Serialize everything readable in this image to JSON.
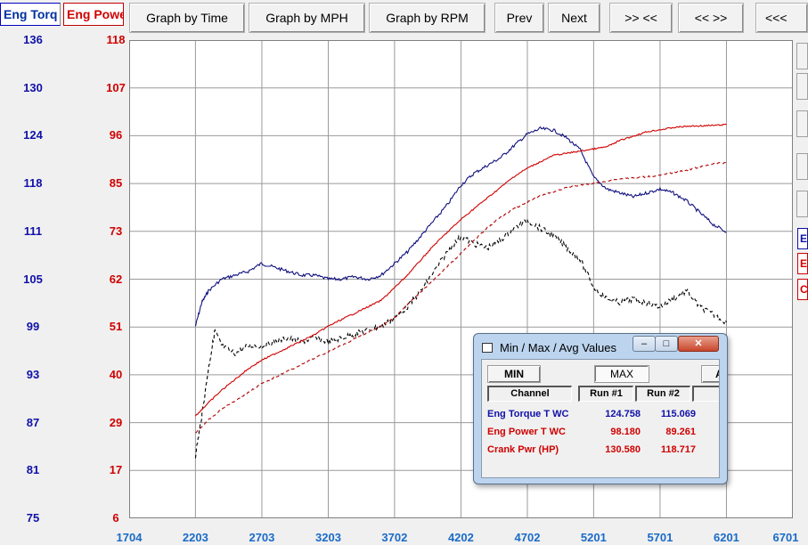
{
  "tabs": {
    "torque": "Eng Torq",
    "power": "Eng Powe"
  },
  "toolbar": {
    "graph_time": "Graph by Time",
    "graph_mph": "Graph by MPH",
    "graph_rpm": "Graph by RPM",
    "prev": "Prev",
    "next": "Next",
    "zoom_in": ">> <<",
    "zoom_out": "<< >>",
    "scroll_left": "<<<"
  },
  "side_chips": [
    "E",
    "E",
    "C"
  ],
  "colors": {
    "torque": "#1010a8",
    "power": "#d00000",
    "torque_run2": "#000000",
    "x_axis": "#1a6bc8"
  },
  "chart_data": {
    "type": "line",
    "xlabel": "",
    "ylabel_left": "",
    "ylabel_right": "",
    "x_ticks": [
      "1704",
      "2203",
      "2703",
      "3203",
      "3702",
      "4202",
      "4702",
      "5201",
      "5701",
      "6201",
      "6701"
    ],
    "xlim": [
      1704,
      6701
    ],
    "y_left_ticks": [
      "136",
      "130",
      "124",
      "118",
      "111",
      "105",
      "99",
      "93",
      "87",
      "81",
      "75"
    ],
    "y_left_range": [
      75,
      136
    ],
    "y_right_ticks": [
      "118",
      "107",
      "96",
      "85",
      "73",
      "62",
      "51",
      "40",
      "29",
      "17",
      "6"
    ],
    "y_right_range": [
      6,
      118
    ],
    "grid": true,
    "series": [
      {
        "axis": "left",
        "style": "solid",
        "color": "#101080",
        "x": [
          2203,
          2250,
          2300,
          2400,
          2500,
          2600,
          2700,
          2800,
          2900,
          3000,
          3100,
          3203,
          3300,
          3400,
          3500,
          3600,
          3702,
          3800,
          3900,
          4000,
          4100,
          4202,
          4300,
          4400,
          4500,
          4600,
          4702,
          4800,
          4900,
          5000,
          5100,
          5201,
          5300,
          5400,
          5500,
          5600,
          5701,
          5800,
          5900,
          6000,
          6100,
          6201
        ],
        "y": [
          99.5,
          102.5,
          104,
          105.5,
          106,
          106.5,
          107.5,
          107,
          106.5,
          106,
          106,
          105.5,
          105.5,
          105.8,
          105.5,
          106,
          107.5,
          109,
          111,
          113,
          115,
          117.5,
          119,
          120,
          121,
          122.5,
          124,
          124.7,
          124.5,
          123.5,
          122,
          118.5,
          117,
          116.5,
          116,
          116.5,
          117,
          116.5,
          115.5,
          114,
          112.5,
          111.5
        ]
      },
      {
        "axis": "left",
        "style": "dashed",
        "color": "#000000",
        "x": [
          2203,
          2250,
          2300,
          2350,
          2400,
          2500,
          2600,
          2700,
          2800,
          2900,
          3000,
          3100,
          3203,
          3300,
          3400,
          3500,
          3600,
          3702,
          3800,
          3900,
          4000,
          4100,
          4202,
          4300,
          4400,
          4500,
          4600,
          4702,
          4800,
          4900,
          5000,
          5100,
          5201,
          5300,
          5400,
          5500,
          5600,
          5701,
          5800,
          5900,
          6000,
          6100,
          6201
        ],
        "y": [
          83,
          88,
          94,
          99,
          97,
          96,
          97,
          97,
          97.5,
          98,
          97.5,
          98,
          97.5,
          98,
          98.5,
          99,
          99.5,
          100.5,
          102,
          104,
          106.5,
          109,
          111,
          110,
          109.5,
          110.5,
          112,
          113,
          112,
          111,
          109.5,
          108,
          104.5,
          103,
          102.5,
          103,
          102.5,
          102,
          103,
          104,
          102,
          101,
          100
        ]
      },
      {
        "axis": "right",
        "style": "solid",
        "color": "#d00000",
        "x": [
          2203,
          2300,
          2400,
          2500,
          2600,
          2700,
          2800,
          2900,
          3000,
          3100,
          3203,
          3300,
          3400,
          3500,
          3600,
          3702,
          3800,
          3900,
          4000,
          4100,
          4202,
          4300,
          4400,
          4500,
          4600,
          4702,
          4800,
          4900,
          5000,
          5100,
          5201,
          5300,
          5400,
          5500,
          5600,
          5701,
          5800,
          5900,
          6000,
          6100,
          6201
        ],
        "y": [
          30,
          33,
          36,
          38.5,
          41,
          43,
          44.5,
          46,
          47.5,
          49,
          51,
          52.5,
          54,
          55.5,
          57,
          60,
          63,
          66.5,
          70,
          73,
          76,
          78.5,
          81,
          83.5,
          86,
          88,
          89.5,
          91,
          91.5,
          92,
          92.5,
          93,
          94.5,
          95.5,
          96.5,
          97,
          97.5,
          97.8,
          97.9,
          98,
          98.2
        ]
      },
      {
        "axis": "right",
        "style": "dashed",
        "color": "#b00000",
        "x": [
          2203,
          2300,
          2400,
          2500,
          2600,
          2700,
          2800,
          2900,
          3000,
          3100,
          3203,
          3300,
          3400,
          3500,
          3600,
          3702,
          3800,
          3900,
          4000,
          4100,
          4202,
          4300,
          4400,
          4500,
          4600,
          4702,
          4800,
          4900,
          5000,
          5100,
          5201,
          5300,
          5400,
          5500,
          5600,
          5701,
          5800,
          5900,
          6000,
          6100,
          6201
        ],
        "y": [
          26,
          29,
          31.5,
          33.5,
          35.5,
          37.5,
          39,
          40.5,
          42,
          43.5,
          45,
          46.5,
          48,
          49.5,
          51,
          53,
          56,
          59,
          62,
          65,
          68,
          71,
          74,
          76.5,
          78.5,
          80,
          81.5,
          82.5,
          83.5,
          84,
          84.5,
          85,
          85.5,
          85.7,
          86,
          86.3,
          87,
          87.5,
          88.3,
          89,
          89.3
        ]
      }
    ]
  },
  "dialog": {
    "title": "Min / Max / Avg Values",
    "min_btn": "MIN",
    "max_btn": "MAX",
    "avg_btn": "A",
    "col_channel": "Channel",
    "col_run1": "Run #1",
    "col_run2": "Run #2",
    "rows": [
      {
        "channel": "Eng Torque T WC",
        "run1": "124.758",
        "run2": "115.069",
        "color": "#1010a8"
      },
      {
        "channel": "Eng Power T WC",
        "run1": "98.180",
        "run2": "89.261",
        "color": "#d00000"
      },
      {
        "channel": "Crank Pwr (HP)",
        "run1": "130.580",
        "run2": "118.717",
        "color": "#d00000"
      }
    ]
  }
}
